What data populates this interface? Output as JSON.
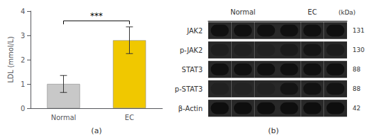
{
  "chart_data": [
    {
      "type": "bar",
      "categories": [
        "Normal",
        "EC"
      ],
      "values": [
        1.0,
        2.8
      ],
      "errors": [
        0.35,
        0.55
      ],
      "colors": [
        "#c8c8c8",
        "#f0c800"
      ],
      "ylabel": "LDL (mmol/L)",
      "ylim": [
        0,
        4
      ],
      "yticks": [
        0,
        1,
        2,
        3,
        4
      ],
      "grid": false,
      "annotation": "***",
      "label": "(a)"
    },
    {
      "type": "blot",
      "groups": [
        "Normal",
        "EC"
      ],
      "rows": [
        "JAK2",
        "p-JAK2",
        "STAT3",
        "p-STAT3",
        "β-Actin"
      ],
      "kda": [
        "131",
        "130",
        "88",
        "88",
        "42"
      ],
      "kda_header": "(kDa)",
      "intensities": [
        [
          0.88,
          0.88,
          0.88,
          0.88,
          0.88,
          0.88
        ],
        [
          0.45,
          0.4,
          0.38,
          0.6,
          0.75,
          0.55
        ],
        [
          0.88,
          0.88,
          0.88,
          0.88,
          0.88,
          0.88
        ],
        [
          0.4,
          0.35,
          0.38,
          0.78,
          0.82,
          0.8
        ],
        [
          0.92,
          0.92,
          0.92,
          0.92,
          0.92,
          0.92
        ]
      ],
      "label": "(b)"
    }
  ]
}
